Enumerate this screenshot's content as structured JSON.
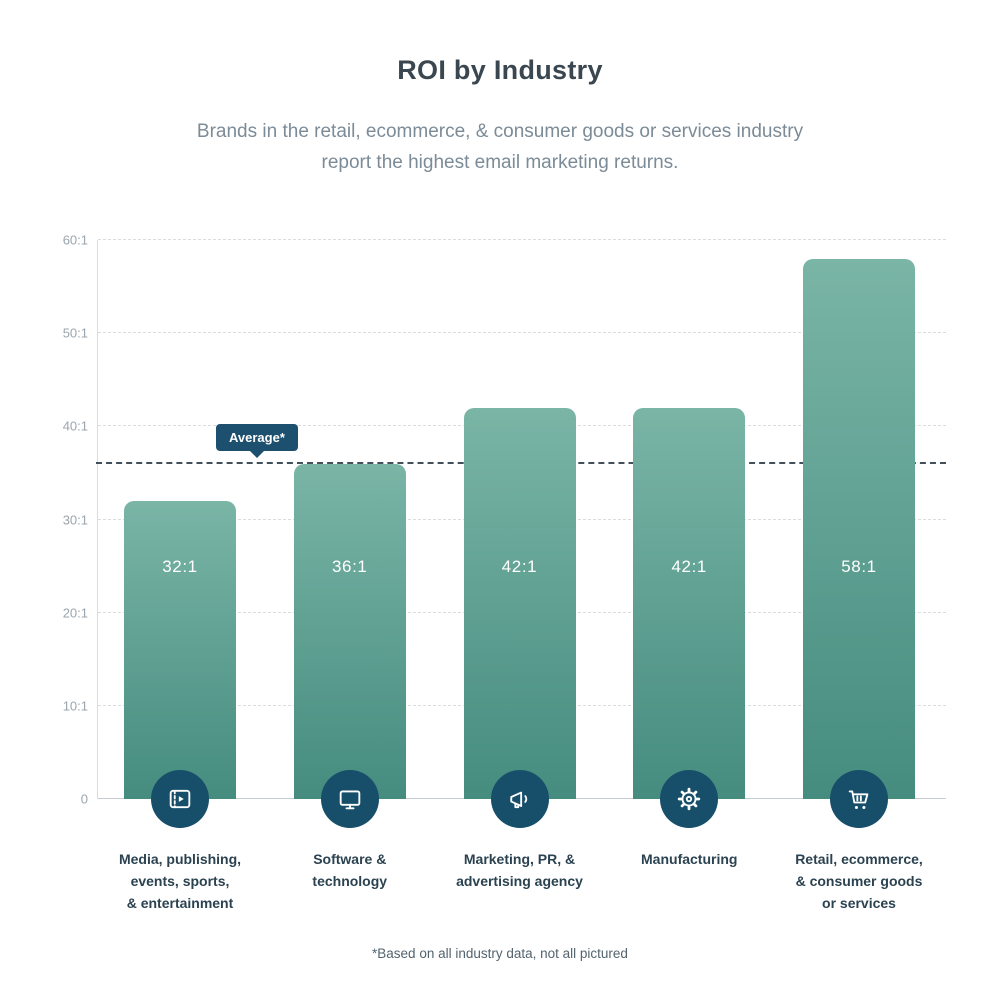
{
  "chart_data": {
    "type": "bar",
    "title": "ROI by Industry",
    "subtitle": "Brands in the retail, ecommerce, & consumer goods or services industry report the highest email marketing returns.",
    "categories": [
      "Media, publishing, events, sports, & entertainment",
      "Software & technology",
      "Marketing, PR, & advertising agency",
      "Manufacturing",
      "Retail, ecommerce, & consumer goods or services"
    ],
    "category_lines": [
      [
        "Media, publishing,",
        "events, sports,",
        "& entertainment"
      ],
      [
        "Software &",
        "technology"
      ],
      [
        "Marketing, PR, &",
        "advertising agency"
      ],
      [
        "Manufacturing"
      ],
      [
        "Retail, ecommerce,",
        "& consumer goods",
        "or services"
      ]
    ],
    "values": [
      32,
      36,
      42,
      42,
      58
    ],
    "value_labels": [
      "32:1",
      "36:1",
      "42:1",
      "42:1",
      "58:1"
    ],
    "icons": [
      "video-player-icon",
      "monitor-icon",
      "megaphone-icon",
      "gear-icon",
      "shopping-cart-icon"
    ],
    "y_ticks": [
      "60:1",
      "50:1",
      "40:1",
      "30:1",
      "20:1",
      "10:1",
      "0"
    ],
    "y_tick_values": [
      60,
      50,
      40,
      30,
      20,
      10,
      0
    ],
    "ylim": [
      0,
      60
    ],
    "grid": true,
    "average": {
      "value": 36,
      "label": "Average*"
    },
    "footnote": "*Based on all industry data, not all pictured",
    "colors": {
      "bar_gradient_top": "#7ab5a6",
      "bar_gradient_bottom": "#458c7f",
      "icon_circle": "#174f6b",
      "average_badge": "#1d4f6e",
      "average_line": "#41505b",
      "title_text": "#3a4750",
      "subtitle_text": "#7b8b97",
      "category_text": "#2b4250",
      "tick_text": "#9ba5ad",
      "gridline": "#d9dde0"
    }
  }
}
